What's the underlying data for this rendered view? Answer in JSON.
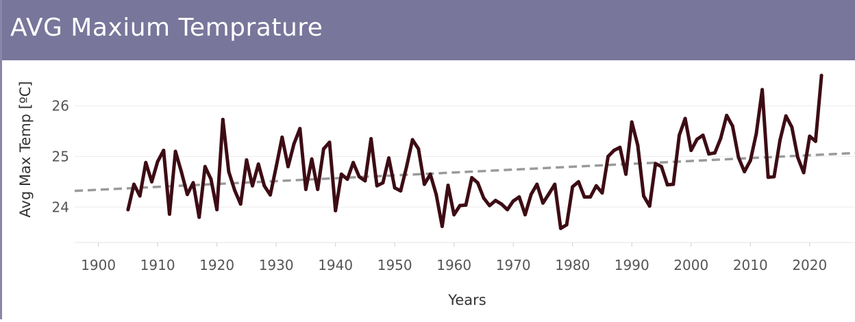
{
  "header": {
    "title": "AVG Maxium Temprature"
  },
  "colors": {
    "header_bg": "#79769b",
    "line": "#3d0c14",
    "trend": "#9a9a9a",
    "grid": "#ececec"
  },
  "chart_data": {
    "type": "line",
    "xlabel": "Years",
    "ylabel": "Avg Max Temp [ºC]",
    "xlim": [
      1896,
      2028
    ],
    "ylim": [
      23.3,
      26.9
    ],
    "x_ticks": [
      1900,
      1910,
      1920,
      1930,
      1940,
      1950,
      1960,
      1970,
      1980,
      1990,
      2000,
      2010,
      2020
    ],
    "y_ticks": [
      24,
      25,
      26
    ],
    "grid": true,
    "series": [
      {
        "x": [
          1905,
          1906,
          1907,
          1908,
          1909,
          1910,
          1911,
          1912,
          1913,
          1914,
          1915,
          1916,
          1917,
          1918,
          1919,
          1920,
          1921,
          1922,
          1923,
          1924,
          1925,
          1926,
          1927,
          1928,
          1929,
          1930,
          1931,
          1932,
          1933,
          1934,
          1935,
          1936,
          1937,
          1938,
          1939,
          1940,
          1941,
          1942,
          1943,
          1944,
          1945,
          1946,
          1947,
          1948,
          1949,
          1950,
          1951,
          1952,
          1953,
          1954,
          1955,
          1956,
          1957,
          1958,
          1959,
          1960,
          1961,
          1962,
          1963,
          1964,
          1965,
          1966,
          1967,
          1968,
          1969,
          1970,
          1971,
          1972,
          1973,
          1974,
          1975,
          1976,
          1977,
          1978,
          1979,
          1980,
          1981,
          1982,
          1983,
          1984,
          1985,
          1986,
          1987,
          1988,
          1989,
          1990,
          1991,
          1992,
          1993,
          1994,
          1995,
          1996,
          1997,
          1998,
          1999,
          2000,
          2001,
          2002,
          2003,
          2004,
          2005,
          2006,
          2007,
          2008,
          2009,
          2010,
          2011,
          2012,
          2013,
          2014,
          2015,
          2016,
          2017,
          2018,
          2019,
          2020,
          2021,
          2022
        ],
        "values": [
          23.95,
          24.45,
          24.22,
          24.88,
          24.5,
          24.9,
          25.12,
          23.86,
          25.1,
          24.7,
          24.25,
          24.48,
          23.8,
          24.8,
          24.55,
          23.95,
          25.73,
          24.7,
          24.33,
          24.06,
          24.93,
          24.42,
          24.85,
          24.42,
          24.24,
          24.8,
          25.38,
          24.8,
          25.25,
          25.55,
          24.35,
          24.95,
          24.35,
          25.15,
          25.28,
          23.93,
          24.65,
          24.55,
          24.88,
          24.6,
          24.52,
          25.35,
          24.42,
          24.48,
          24.97,
          24.38,
          24.32,
          24.8,
          25.33,
          25.15,
          24.45,
          24.65,
          24.25,
          23.62,
          24.43,
          23.85,
          24.03,
          24.04,
          24.58,
          24.48,
          24.18,
          24.03,
          24.13,
          24.06,
          23.95,
          24.12,
          24.2,
          23.85,
          24.25,
          24.45,
          24.08,
          24.26,
          24.45,
          23.58,
          23.65,
          24.4,
          24.5,
          24.2,
          24.2,
          24.42,
          24.28,
          25.0,
          25.12,
          25.18,
          24.65,
          25.68,
          25.22,
          24.22,
          24.02,
          24.86,
          24.8,
          24.44,
          24.45,
          25.42,
          25.75,
          25.12,
          25.34,
          25.42,
          25.05,
          25.07,
          25.36,
          25.81,
          25.6,
          24.98,
          24.7,
          24.92,
          25.45,
          26.32,
          24.59,
          24.6,
          25.32,
          25.8,
          25.58,
          24.98,
          24.68,
          25.4,
          25.3,
          26.6
        ]
      }
    ],
    "trendline": {
      "x": [
        1896,
        2028
      ],
      "y": [
        24.32,
        25.07
      ]
    }
  }
}
